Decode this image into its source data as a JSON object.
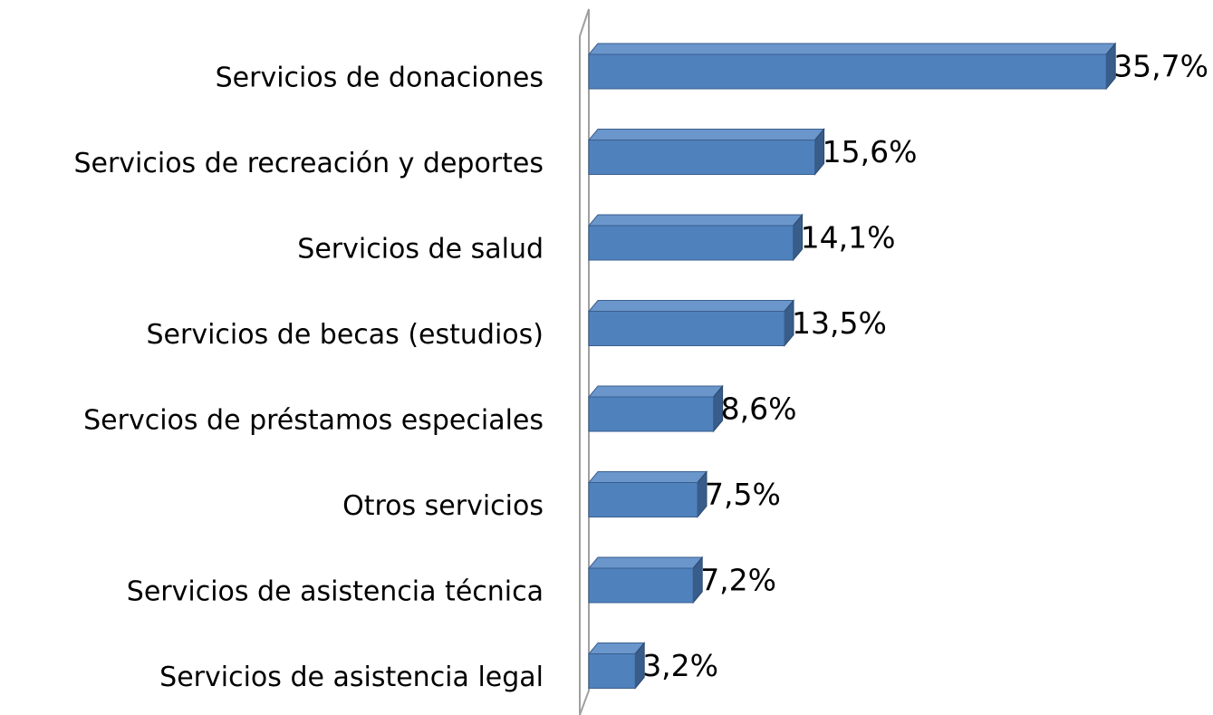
{
  "chart_data": {
    "type": "bar",
    "orientation": "horizontal",
    "categories": [
      "Servicios de donaciones",
      "Servicios de recreación y deportes",
      "Servicios de salud",
      "Servicios de becas (estudios)",
      "Servcios de préstamos especiales",
      "Otros servicios",
      "Servicios de asistencia técnica",
      "Servicios de asistencia legal"
    ],
    "values": [
      35.7,
      15.6,
      14.1,
      13.5,
      8.6,
      7.5,
      7.2,
      3.2
    ],
    "value_labels": [
      "35,7%",
      "15,6%",
      "14,1%",
      "13,5%",
      "8,6%",
      "7,5%",
      "7,2%",
      "3,2%"
    ],
    "color": "#4f81bd"
  }
}
